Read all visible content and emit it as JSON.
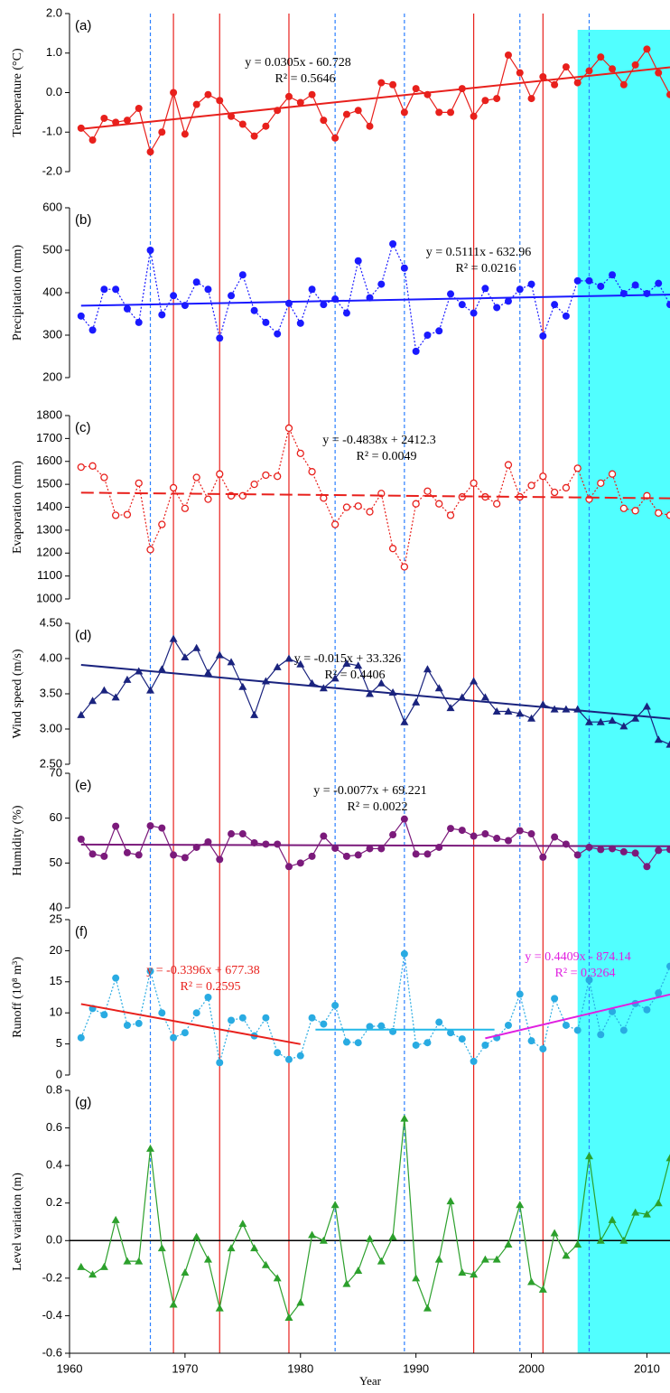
{
  "overlays": {
    "shaded_span": [
      2004,
      2012
    ],
    "shade_color": "#33ffff",
    "red_lines": [
      1969,
      1973,
      1979,
      1995,
      2001
    ],
    "red_line_color": "#e8201c",
    "blue_dashed_lines": [
      1967,
      1983,
      1989,
      1999,
      2005
    ],
    "blue_line_color": "#2a7fff"
  },
  "chart_data": [
    {
      "type": "line",
      "label": "(a)",
      "ylabel": "Temperature (°C)",
      "xlim": [
        1960,
        2012
      ],
      "ylim": [
        -2,
        2
      ],
      "yticks": [
        {
          "value": 2,
          "label": "2.0"
        },
        {
          "value": 1,
          "label": "1.0"
        },
        {
          "value": 0,
          "label": "0.0"
        },
        {
          "value": -1,
          "label": "-1.0"
        },
        {
          "value": -2,
          "label": "-2.0"
        }
      ],
      "x": [
        1961,
        1962,
        1963,
        1964,
        1965,
        1966,
        1967,
        1968,
        1969,
        1970,
        1971,
        1972,
        1973,
        1974,
        1975,
        1976,
        1977,
        1978,
        1979,
        1980,
        1981,
        1982,
        1983,
        1984,
        1985,
        1986,
        1987,
        1988,
        1989,
        1990,
        1991,
        1992,
        1993,
        1994,
        1995,
        1996,
        1997,
        1998,
        1999,
        2000,
        2001,
        2002,
        2003,
        2004,
        2005,
        2006,
        2007,
        2008,
        2009,
        2010,
        2011,
        2012
      ],
      "series": [
        {
          "color": "#e8201c",
          "marker": "circle",
          "line_style": "solid",
          "values": [
            -0.9,
            -1.2,
            -0.65,
            -0.75,
            -0.7,
            -0.4,
            -1.5,
            -1.0,
            0.0,
            -1.05,
            -0.3,
            -0.05,
            -0.2,
            -0.6,
            -0.8,
            -1.1,
            -0.85,
            -0.45,
            -0.1,
            -0.25,
            -0.05,
            -0.7,
            -1.15,
            -0.55,
            -0.45,
            -0.85,
            0.25,
            0.2,
            -0.5,
            0.1,
            -0.05,
            -0.5,
            -0.5,
            0.1,
            -0.6,
            -0.2,
            -0.15,
            0.95,
            0.5,
            -0.15,
            0.4,
            0.2,
            0.65,
            0.25,
            0.55,
            0.9,
            0.6,
            0.2,
            0.7,
            1.1,
            0.5,
            -0.05
          ]
        }
      ],
      "trend_lines": [
        {
          "x": [
            1961,
            2012
          ],
          "values": [
            -0.92,
            0.64
          ],
          "color": "#e8201c",
          "dash": "solid",
          "label_color": "#000000",
          "equation": "y = 0.0305x - 60.728",
          "r2": "R² = 0.5646"
        }
      ]
    },
    {
      "type": "line",
      "label": "(b)",
      "ylabel": "Precipitation (mm)",
      "xlim": [
        1960,
        2012
      ],
      "ylim": [
        200,
        600
      ],
      "yticks": [
        600,
        500,
        400,
        300,
        200
      ],
      "x": [
        1961,
        1962,
        1963,
        1964,
        1965,
        1966,
        1967,
        1968,
        1969,
        1970,
        1971,
        1972,
        1973,
        1974,
        1975,
        1976,
        1977,
        1978,
        1979,
        1980,
        1981,
        1982,
        1983,
        1984,
        1985,
        1986,
        1987,
        1988,
        1989,
        1990,
        1991,
        1992,
        1993,
        1994,
        1995,
        1996,
        1997,
        1998,
        1999,
        2000,
        2001,
        2002,
        2003,
        2004,
        2005,
        2006,
        2007,
        2008,
        2009,
        2010,
        2011,
        2012
      ],
      "series": [
        {
          "color": "#1a1aff",
          "marker": "circle",
          "line_style": "dotted",
          "values": [
            345,
            312,
            408,
            408,
            362,
            330,
            500,
            348,
            393,
            370,
            425,
            408,
            293,
            393,
            442,
            358,
            330,
            303,
            375,
            328,
            408,
            372,
            385,
            352,
            475,
            388,
            420,
            515,
            458,
            262,
            300,
            310,
            397,
            372,
            352,
            410,
            365,
            380,
            408,
            420,
            298,
            372,
            345,
            428,
            428,
            415,
            442,
            398,
            418,
            398,
            422,
            372
          ]
        }
      ],
      "trend_lines": [
        {
          "x": [
            1961,
            2012
          ],
          "values": [
            369.3,
            395.4
          ],
          "color": "#1a1aff",
          "dash": "solid",
          "label_color": "#000000",
          "equation": "y = 0.5111x - 632.96",
          "r2": "R² = 0.0216"
        }
      ]
    },
    {
      "type": "line",
      "label": "(c)",
      "ylabel": "Evaporation (mm)",
      "xlim": [
        1960,
        2012
      ],
      "ylim": [
        1000,
        1800
      ],
      "yticks": [
        1800,
        1700,
        1600,
        1500,
        1400,
        1300,
        1200,
        1100,
        1000
      ],
      "x": [
        1961,
        1962,
        1963,
        1964,
        1965,
        1966,
        1967,
        1968,
        1969,
        1970,
        1971,
        1972,
        1973,
        1974,
        1975,
        1976,
        1977,
        1978,
        1979,
        1980,
        1981,
        1982,
        1983,
        1984,
        1985,
        1986,
        1987,
        1988,
        1989,
        1990,
        1991,
        1992,
        1993,
        1994,
        1995,
        1996,
        1997,
        1998,
        1999,
        2000,
        2001,
        2002,
        2003,
        2004,
        2005,
        2006,
        2007,
        2008,
        2009,
        2010,
        2011,
        2012
      ],
      "series": [
        {
          "color": "#e8201c",
          "marker": "open-circle",
          "line_style": "dotted",
          "values": [
            1575,
            1580,
            1530,
            1365,
            1368,
            1505,
            1215,
            1325,
            1485,
            1395,
            1530,
            1435,
            1545,
            1450,
            1450,
            1500,
            1540,
            1535,
            1745,
            1635,
            1555,
            1440,
            1325,
            1400,
            1405,
            1380,
            1460,
            1220,
            1140,
            1415,
            1470,
            1415,
            1365,
            1445,
            1505,
            1445,
            1415,
            1585,
            1445,
            1495,
            1535,
            1465,
            1485,
            1570,
            1435,
            1505,
            1545,
            1395,
            1385,
            1450,
            1375,
            1365
          ]
        }
      ],
      "trend_lines": [
        {
          "x": [
            1961,
            2012
          ],
          "values": [
            1463.6,
            1438.9
          ],
          "color": "#e8201c",
          "dash": "dashed",
          "label_color": "#000000",
          "equation": "y = -0.4838x + 2412.3",
          "r2": "R² = 0.0049"
        }
      ]
    },
    {
      "type": "line",
      "label": "(d)",
      "ylabel": "Wind speed (m/s)",
      "xlim": [
        1960,
        2012
      ],
      "ylim": [
        2.5,
        4.5
      ],
      "yticks": [
        {
          "value": 4.5,
          "label": "4.50"
        },
        {
          "value": 4,
          "label": "4.00"
        },
        {
          "value": 3.5,
          "label": "3.50"
        },
        {
          "value": 3,
          "label": "3.00"
        },
        {
          "value": 2.5,
          "label": "2.50"
        }
      ],
      "x": [
        1961,
        1962,
        1963,
        1964,
        1965,
        1966,
        1967,
        1968,
        1969,
        1970,
        1971,
        1972,
        1973,
        1974,
        1975,
        1976,
        1977,
        1978,
        1979,
        1980,
        1981,
        1982,
        1983,
        1984,
        1985,
        1986,
        1987,
        1988,
        1989,
        1990,
        1991,
        1992,
        1993,
        1994,
        1995,
        1996,
        1997,
        1998,
        1999,
        2000,
        2001,
        2002,
        2003,
        2004,
        2005,
        2006,
        2007,
        2008,
        2009,
        2010,
        2011,
        2012
      ],
      "series": [
        {
          "color": "#1a237e",
          "marker": "triangle",
          "line_style": "solid",
          "values": [
            3.2,
            3.4,
            3.55,
            3.45,
            3.7,
            3.82,
            3.55,
            3.85,
            4.28,
            4.02,
            4.15,
            3.8,
            4.05,
            3.95,
            3.6,
            3.2,
            3.68,
            3.88,
            4.0,
            3.92,
            3.65,
            3.58,
            3.72,
            3.93,
            3.9,
            3.5,
            3.65,
            3.52,
            3.1,
            3.38,
            3.85,
            3.58,
            3.3,
            3.45,
            3.68,
            3.45,
            3.25,
            3.25,
            3.22,
            3.15,
            3.35,
            3.28,
            3.28,
            3.28,
            3.1,
            3.1,
            3.12,
            3.04,
            3.15,
            3.32,
            2.85,
            2.78
          ]
        }
      ],
      "trend_lines": [
        {
          "x": [
            1961,
            2012
          ],
          "values": [
            3.911,
            3.146
          ],
          "color": "#1a237e",
          "dash": "solid",
          "label_color": "#000000",
          "equation": "y = -0.015x + 33.326",
          "r2": "R² = 0.4406"
        }
      ]
    },
    {
      "type": "line",
      "label": "(e)",
      "ylabel": "Humidity (%)",
      "xlim": [
        1960,
        2012
      ],
      "ylim": [
        40,
        70
      ],
      "yticks": [
        70,
        60,
        50,
        40
      ],
      "x": [
        1961,
        1962,
        1963,
        1964,
        1965,
        1966,
        1967,
        1968,
        1969,
        1970,
        1971,
        1972,
        1973,
        1974,
        1975,
        1976,
        1977,
        1978,
        1979,
        1980,
        1981,
        1982,
        1983,
        1984,
        1985,
        1986,
        1987,
        1988,
        1989,
        1990,
        1991,
        1992,
        1993,
        1994,
        1995,
        1996,
        1997,
        1998,
        1999,
        2000,
        2001,
        2002,
        2003,
        2004,
        2005,
        2006,
        2007,
        2008,
        2009,
        2010,
        2011,
        2012
      ],
      "series": [
        {
          "color": "#7b1a7b",
          "marker": "circle",
          "line_style": "solid",
          "values": [
            55.3,
            52,
            51.5,
            58.2,
            52.3,
            51.8,
            58.3,
            57.8,
            51.8,
            51.2,
            53.5,
            54.7,
            50.8,
            56.5,
            56.5,
            54.5,
            54.2,
            54.2,
            49.2,
            50,
            51.5,
            56,
            53.3,
            51.5,
            51.8,
            53.2,
            53.2,
            56.3,
            59.8,
            52,
            52,
            53.5,
            57.7,
            57.3,
            56,
            56.5,
            55.5,
            55,
            57.2,
            56.5,
            51.3,
            55.8,
            54.2,
            51.8,
            53.5,
            53,
            53.2,
            52.5,
            52.2,
            49.2,
            52.8,
            53
          ]
        }
      ],
      "trend_lines": [
        {
          "x": [
            1961,
            2012
          ],
          "values": [
            54.12,
            53.73
          ],
          "color": "#7b1a7b",
          "dash": "solid",
          "label_color": "#000000",
          "equation": "y = -0.0077x + 69.221",
          "r2": "R² = 0.0022"
        }
      ]
    },
    {
      "type": "line",
      "label": "(f)",
      "ylabel": "Runoff (10⁸ m³)",
      "xlim": [
        1960,
        2012
      ],
      "ylim": [
        0,
        25
      ],
      "yticks": [
        25,
        20,
        15,
        10,
        5,
        0
      ],
      "x": [
        1961,
        1962,
        1963,
        1964,
        1965,
        1966,
        1967,
        1968,
        1969,
        1970,
        1971,
        1972,
        1973,
        1974,
        1975,
        1976,
        1977,
        1978,
        1979,
        1980,
        1981,
        1982,
        1983,
        1984,
        1985,
        1986,
        1987,
        1988,
        1989,
        1990,
        1991,
        1992,
        1993,
        1994,
        1995,
        1996,
        1997,
        1998,
        1999,
        2000,
        2001,
        2002,
        2003,
        2004,
        2005,
        2006,
        2007,
        2008,
        2009,
        2010,
        2011,
        2012
      ],
      "series": [
        {
          "color": "#29abe2",
          "marker": "circle",
          "line_style": "dotted",
          "values": [
            6,
            10.7,
            9.7,
            15.6,
            8,
            8.3,
            16.7,
            10,
            6,
            6.8,
            10,
            12.5,
            2,
            8.8,
            9.2,
            6.3,
            9.2,
            3.6,
            2.5,
            3.1,
            9.2,
            8.2,
            11.2,
            5.3,
            5.2,
            7.8,
            7.9,
            7,
            19.5,
            4.8,
            5.2,
            8.5,
            6.8,
            5.8,
            2.2,
            4.8,
            6,
            8,
            13,
            5.5,
            4.2,
            12.3,
            8,
            7.2,
            15.3,
            6.5,
            10.2,
            7.2,
            11.5,
            10.5,
            13.2,
            17.5
          ]
        }
      ],
      "trend_lines": [
        {
          "x": [
            1961,
            1980
          ],
          "values": [
            11.42,
            4.97
          ],
          "color": "#e8201c",
          "dash": "solid",
          "label_color": "#e8201c",
          "equation": "y = -0.3396x + 677.38",
          "r2": "R² = 0.2595"
        },
        {
          "x": [
            1981.3,
            1996.8
          ],
          "values": [
            7.3,
            7.3
          ],
          "color": "#22b8e8",
          "dash": "solid"
        },
        {
          "x": [
            1996,
            2012
          ],
          "values": [
            5.9,
            12.95
          ],
          "color": "#e020e0",
          "dash": "solid",
          "label_color": "#e020e0",
          "equation": "y = 0.4409x - 874.14",
          "r2": "R² = 0.3264"
        }
      ]
    },
    {
      "type": "line",
      "label": "(g)",
      "ylabel": "Level variation (m)",
      "xlabel": "Year",
      "xlim": [
        1960,
        2012
      ],
      "ylim": [
        -0.6,
        0.8
      ],
      "yticks": [
        0.8,
        0.6,
        0.4,
        0.2,
        {
          "value": 0,
          "label": "0.0"
        },
        -0.2,
        -0.4,
        -0.6
      ],
      "xticks": [
        1960,
        1970,
        1980,
        1990,
        2000,
        2010
      ],
      "reference_line": 0,
      "reference_color": "#000000",
      "x": [
        1961,
        1962,
        1963,
        1964,
        1965,
        1966,
        1967,
        1968,
        1969,
        1970,
        1971,
        1972,
        1973,
        1974,
        1975,
        1976,
        1977,
        1978,
        1979,
        1980,
        1981,
        1982,
        1983,
        1984,
        1985,
        1986,
        1987,
        1988,
        1989,
        1990,
        1991,
        1992,
        1993,
        1994,
        1995,
        1996,
        1997,
        1998,
        1999,
        2000,
        2001,
        2002,
        2003,
        2004,
        2005,
        2006,
        2007,
        2008,
        2009,
        2010,
        2011,
        2012
      ],
      "series": [
        {
          "color": "#2ca02c",
          "marker": "triangle",
          "line_style": "solid",
          "values": [
            -0.14,
            -0.18,
            -0.14,
            0.11,
            -0.11,
            -0.11,
            0.49,
            -0.04,
            -0.34,
            -0.17,
            0.02,
            -0.1,
            -0.36,
            -0.04,
            0.09,
            -0.04,
            -0.13,
            -0.2,
            -0.41,
            -0.33,
            0.03,
            0,
            0.19,
            -0.23,
            -0.16,
            0.01,
            -0.11,
            0.02,
            0.65,
            -0.2,
            -0.36,
            -0.1,
            0.21,
            -0.17,
            -0.18,
            -0.1,
            -0.1,
            -0.02,
            0.19,
            -0.22,
            -0.26,
            0.04,
            -0.08,
            -0.02,
            0.45,
            0,
            0.11,
            0,
            0.15,
            0.14,
            0.2,
            0.44
          ]
        }
      ],
      "trend_lines": []
    }
  ]
}
